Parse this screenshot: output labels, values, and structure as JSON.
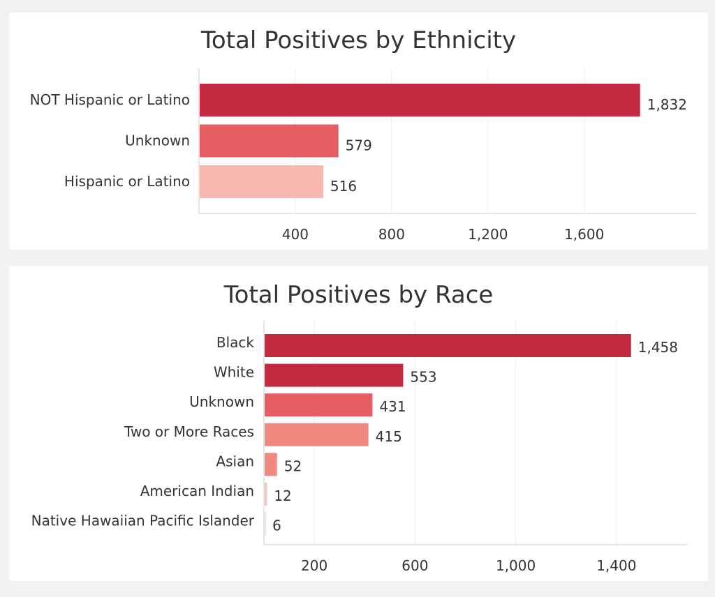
{
  "chart_data": [
    {
      "type": "bar",
      "orientation": "horizontal",
      "title": "Total Positives by Ethnicity",
      "xlabel": "",
      "ylabel": "",
      "categories": [
        "NOT Hispanic or Latino",
        "Unknown",
        "Hispanic or Latino"
      ],
      "values": [
        1832,
        579,
        516
      ],
      "value_labels": [
        "1,832",
        "579",
        "516"
      ],
      "colors": [
        "#c62a42",
        "#e65e63",
        "#f6b8b0"
      ],
      "xlim": [
        0,
        2030
      ],
      "xticks": [
        400,
        800,
        1200,
        1600
      ],
      "xtick_labels": [
        "400",
        "800",
        "1,200",
        "1,600"
      ],
      "grid": "vertical"
    },
    {
      "type": "bar",
      "orientation": "horizontal",
      "title": "Total Positives by Race",
      "xlabel": "",
      "ylabel": "",
      "categories": [
        "Black",
        "White",
        "Unknown",
        "Two or More Races",
        "Asian",
        "American Indian",
        "Native Hawaiian Pacific Islander"
      ],
      "values": [
        1458,
        553,
        431,
        415,
        52,
        12,
        6
      ],
      "value_labels": [
        "1,458",
        "553",
        "431",
        "415",
        "52",
        "12",
        "6"
      ],
      "colors": [
        "#c62a42",
        "#c62a42",
        "#e65e63",
        "#f08a80",
        "#f08a80",
        "#f6c4bc",
        "#e6e6e6"
      ],
      "xlim": [
        0,
        1650
      ],
      "xticks": [
        200,
        600,
        1000,
        1400
      ],
      "xtick_labels": [
        "200",
        "600",
        "1,000",
        "1,400"
      ],
      "grid": "vertical"
    }
  ]
}
